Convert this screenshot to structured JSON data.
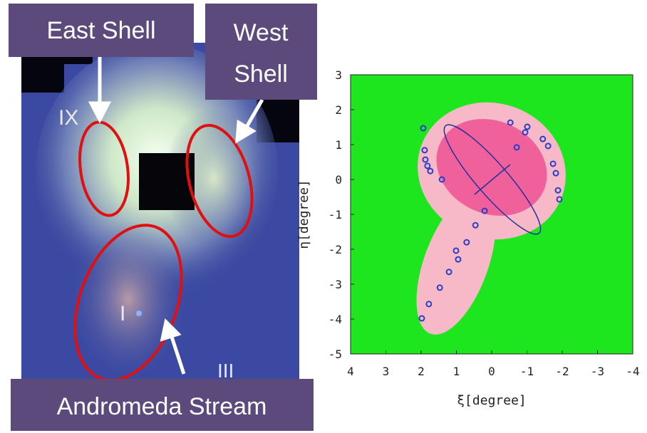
{
  "labels": {
    "east": "East Shell",
    "west_1": "West",
    "west_2": "Shell",
    "stream": "Andromeda Stream",
    "field_ix": "IX",
    "field_i": "I",
    "field_iii": "III"
  },
  "chart_data": {
    "type": "scatter",
    "xlabel": "ξ[degree]",
    "ylabel": "η[degree]",
    "x": [
      1.94,
      1.9,
      1.88,
      1.82,
      1.74,
      1.41,
      0.2,
      0.46,
      0.71,
      1.01,
      0.95,
      1.21,
      1.47,
      1.78,
      1.98,
      -0.53,
      -0.71,
      -0.95,
      -1.01,
      -1.45,
      -1.6,
      -1.74,
      -1.82,
      -1.88,
      -1.92
    ],
    "values": [
      1.47,
      0.84,
      0.57,
      0.39,
      0.24,
      0.0,
      -0.9,
      -1.31,
      -1.8,
      -2.04,
      -2.29,
      -2.65,
      -3.1,
      -3.57,
      -3.98,
      1.63,
      0.92,
      1.35,
      1.51,
      1.16,
      0.96,
      0.45,
      0.18,
      -0.31,
      -0.57
    ],
    "color": "#2a3fc8",
    "xlim": [
      4,
      -4
    ],
    "ylim": [
      -5,
      3
    ],
    "xticks": [
      4,
      3,
      2,
      1,
      0,
      -1,
      -2,
      -3,
      -4
    ],
    "yticks": [
      3,
      2,
      1,
      0,
      -1,
      -2,
      -3,
      -4,
      -5
    ]
  }
}
